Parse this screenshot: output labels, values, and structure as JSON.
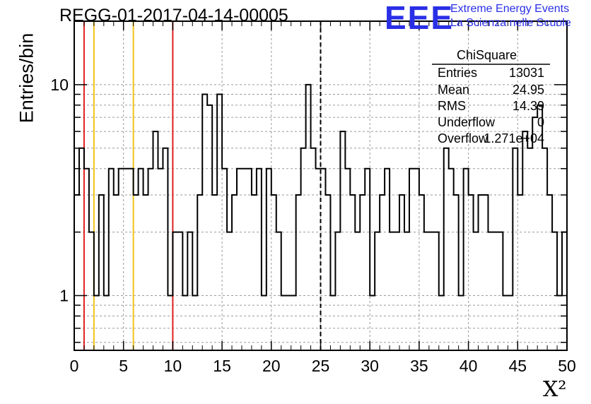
{
  "header": {
    "title": "REGG-01-2017-04-14-00005",
    "y_axis_label": "Entries/bin",
    "x_axis_label": "X²"
  },
  "logo": {
    "mark": "EEE",
    "line1": "Extreme Energy Events",
    "line2": "La Scienza nelle Scuole",
    "color": "#2a2fe6"
  },
  "stats_box": {
    "title": "ChiSquare",
    "rows": [
      {
        "label": "Entries",
        "value": "13031"
      },
      {
        "label": "Mean",
        "value": "24.95"
      },
      {
        "label": "RMS",
        "value": "14.39"
      },
      {
        "label": "Underflow",
        "value": "0"
      },
      {
        "label": "Overflow",
        "value": "1.271e+04"
      }
    ]
  },
  "chart_data": {
    "type": "histogram",
    "title": "REGG-01-2017-04-14-00005",
    "xlabel": "X²",
    "ylabel": "Entries/bin",
    "xlim": [
      0,
      50
    ],
    "ylim": [
      0.55,
      20
    ],
    "y_scale": "log",
    "bin_width": 0.5,
    "grid": true,
    "x_ticks": [
      "0",
      "5",
      "10",
      "15",
      "20",
      "25",
      "30",
      "35",
      "40",
      "45",
      "50"
    ],
    "y_ticks": [
      "1",
      "10"
    ],
    "values": [
      3,
      5,
      4,
      2,
      1,
      3,
      1,
      4,
      3,
      4,
      4,
      4,
      3,
      4,
      3,
      4,
      6,
      4,
      5,
      1,
      2,
      2,
      1,
      2,
      1,
      3,
      9,
      8,
      3,
      9,
      4,
      2,
      3,
      4,
      4,
      4,
      3,
      4,
      1,
      4,
      3,
      2,
      1,
      1,
      1,
      3,
      5,
      10,
      5,
      4,
      4,
      3,
      1,
      2,
      6,
      4,
      3,
      2,
      3,
      4,
      1,
      2,
      3,
      4,
      2,
      2,
      3,
      2,
      4,
      4,
      3,
      2,
      2,
      2,
      1,
      5,
      4,
      3,
      1,
      4,
      3,
      2,
      3,
      3,
      2,
      2,
      2,
      1,
      1,
      5,
      3,
      6,
      5,
      7,
      8,
      5,
      3,
      2,
      1,
      2
    ],
    "series_color": "#000000",
    "reference_lines": [
      {
        "x": 1,
        "color": "#e02020",
        "style": "solid"
      },
      {
        "x": 2,
        "color": "#f2c31a",
        "style": "solid"
      },
      {
        "x": 6,
        "color": "#f2c31a",
        "style": "solid"
      },
      {
        "x": 10,
        "color": "#e02020",
        "style": "solid"
      },
      {
        "x": 25,
        "color": "#000000",
        "style": "dashed"
      }
    ]
  }
}
